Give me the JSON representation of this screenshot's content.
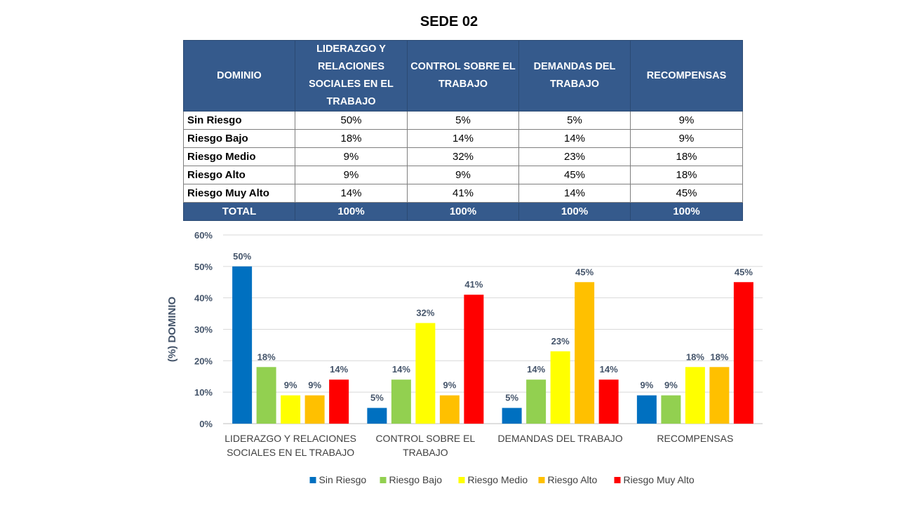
{
  "title": "SEDE 02",
  "table": {
    "headers": [
      "DOMINIO",
      "LIDERAZGO Y RELACIONES SOCIALES EN EL TRABAJO",
      "CONTROL SOBRE EL TRABAJO",
      "DEMANDAS DEL TRABAJO",
      "RECOMPENSAS"
    ],
    "rows": [
      {
        "label": "Sin Riesgo",
        "values": [
          "50%",
          "5%",
          "5%",
          "9%"
        ]
      },
      {
        "label": "Riesgo Bajo",
        "values": [
          "18%",
          "14%",
          "14%",
          "9%"
        ]
      },
      {
        "label": "Riesgo Medio",
        "values": [
          "9%",
          "32%",
          "23%",
          "18%"
        ]
      },
      {
        "label": "Riesgo Alto",
        "values": [
          "9%",
          "9%",
          "45%",
          "18%"
        ]
      },
      {
        "label": "Riesgo Muy Alto",
        "values": [
          "14%",
          "41%",
          "14%",
          "45%"
        ]
      }
    ],
    "total": {
      "label": "TOTAL",
      "values": [
        "100%",
        "100%",
        "100%",
        "100%"
      ]
    }
  },
  "chart_data": {
    "type": "bar",
    "categories": [
      [
        "LIDERAZGO Y RELACIONES",
        "SOCIALES EN EL TRABAJO"
      ],
      [
        "CONTROL SOBRE EL",
        "TRABAJO"
      ],
      [
        "DEMANDAS DEL TRABAJO"
      ],
      [
        "RECOMPENSAS"
      ]
    ],
    "series": [
      {
        "name": "Sin Riesgo",
        "color": "#0070c0",
        "values": [
          50,
          5,
          5,
          9
        ],
        "labels": [
          "50%",
          "5%",
          "5%",
          "9%"
        ]
      },
      {
        "name": "Riesgo Bajo",
        "color": "#92d050",
        "values": [
          18,
          14,
          14,
          9
        ],
        "labels": [
          "18%",
          "14%",
          "14%",
          "9%"
        ]
      },
      {
        "name": "Riesgo Medio",
        "color": "#ffff00",
        "values": [
          9,
          32,
          23,
          18
        ],
        "labels": [
          "9%",
          "32%",
          "23%",
          "18%"
        ]
      },
      {
        "name": "Riesgo Alto",
        "color": "#ffc000",
        "values": [
          9,
          9,
          45,
          18
        ],
        "labels": [
          "9%",
          "9%",
          "45%",
          "18%"
        ]
      },
      {
        "name": "Riesgo Muy Alto",
        "color": "#ff0000",
        "values": [
          14,
          41,
          14,
          45
        ],
        "labels": [
          "14%",
          "41%",
          "14%",
          "45%"
        ]
      }
    ],
    "ylabel": "(%) DOMINIO",
    "ylim": [
      0,
      60
    ],
    "yticks": [
      0,
      10,
      20,
      30,
      40,
      50,
      60
    ],
    "ytick_labels": [
      "0%",
      "10%",
      "20%",
      "30%",
      "40%",
      "50%",
      "60%"
    ],
    "grid": true,
    "legend": "bottom",
    "label_color": "#44546a"
  }
}
